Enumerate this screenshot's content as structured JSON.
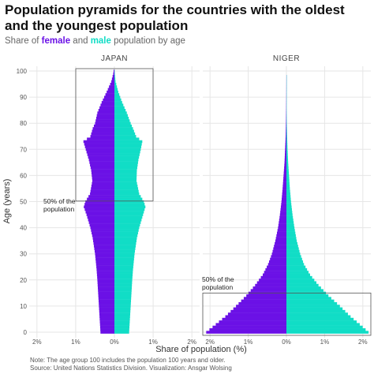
{
  "title": "Population pyramids for the countries with the oldest and the youngest population",
  "subtitle": {
    "prefix": "Share of ",
    "female": "female",
    "middle": " and ",
    "male": "male",
    "suffix": " population by age"
  },
  "notes": {
    "note": "Note: The age group 100 includes the population 100 years and older.",
    "source": "Source: United Nations Statistics Division. Visualization: Ansgar Wolsing"
  },
  "colors": {
    "female": "#6b11e6",
    "male": "#11ddc6",
    "grid": "#e6e6e6",
    "axis": "#888888"
  },
  "chart_data": [
    {
      "type": "bar",
      "orientation": "horizontal",
      "panel": "JAPAN",
      "ylabel": "Age (years)",
      "xlabel": "Share of population (%)",
      "ylim": [
        0,
        100
      ],
      "xlim": [
        -2.2,
        2.2
      ],
      "y_ticks": [
        0,
        10,
        20,
        30,
        40,
        50,
        60,
        70,
        80,
        90,
        100
      ],
      "x_ticks": [
        "2%",
        "1%",
        "0%",
        "1%",
        "2%"
      ],
      "annotation": {
        "label": "50% of the population",
        "lines": [
          "50% of the",
          "population"
        ],
        "box_age_range": [
          49,
          100
        ]
      },
      "series": [
        {
          "name": "female",
          "age_points": [
            [
              0,
              0.36
            ],
            [
              5,
              0.38
            ],
            [
              10,
              0.4
            ],
            [
              15,
              0.42
            ],
            [
              20,
              0.44
            ],
            [
              24,
              0.46
            ],
            [
              30,
              0.5
            ],
            [
              36,
              0.56
            ],
            [
              40,
              0.62
            ],
            [
              45,
              0.72
            ],
            [
              48,
              0.79
            ],
            [
              50,
              0.75
            ],
            [
              53,
              0.63
            ],
            [
              58,
              0.57
            ],
            [
              62,
              0.6
            ],
            [
              66,
              0.66
            ],
            [
              70,
              0.74
            ],
            [
              73,
              0.8
            ],
            [
              75,
              0.62
            ],
            [
              78,
              0.56
            ],
            [
              80,
              0.5
            ],
            [
              84,
              0.44
            ],
            [
              88,
              0.33
            ],
            [
              92,
              0.2
            ],
            [
              96,
              0.08
            ],
            [
              99,
              0.03
            ],
            [
              100,
              0.02
            ]
          ]
        },
        {
          "name": "male",
          "age_points": [
            [
              0,
              0.38
            ],
            [
              5,
              0.4
            ],
            [
              10,
              0.42
            ],
            [
              15,
              0.44
            ],
            [
              20,
              0.46
            ],
            [
              24,
              0.48
            ],
            [
              30,
              0.52
            ],
            [
              36,
              0.58
            ],
            [
              40,
              0.64
            ],
            [
              45,
              0.74
            ],
            [
              48,
              0.8
            ],
            [
              50,
              0.76
            ],
            [
              53,
              0.64
            ],
            [
              58,
              0.57
            ],
            [
              62,
              0.58
            ],
            [
              66,
              0.62
            ],
            [
              70,
              0.68
            ],
            [
              73,
              0.72
            ],
            [
              75,
              0.56
            ],
            [
              78,
              0.48
            ],
            [
              80,
              0.42
            ],
            [
              84,
              0.32
            ],
            [
              88,
              0.2
            ],
            [
              92,
              0.1
            ],
            [
              96,
              0.03
            ],
            [
              99,
              0.01
            ],
            [
              100,
              0.005
            ]
          ]
        }
      ]
    },
    {
      "type": "bar",
      "orientation": "horizontal",
      "panel": "NIGER",
      "xlabel": "Share of population (%)",
      "ylim": [
        0,
        100
      ],
      "xlim": [
        -2.2,
        2.2
      ],
      "x_ticks": [
        "2%",
        "1%",
        "0%",
        "1%",
        "2%"
      ],
      "annotation": {
        "label": "50% of the population",
        "lines": [
          "50% of the",
          "population"
        ],
        "box_age_range": [
          0,
          15
        ]
      },
      "series": [
        {
          "name": "female",
          "age_points": [
            [
              0,
              2.1
            ],
            [
              3,
              1.85
            ],
            [
              6,
              1.6
            ],
            [
              10,
              1.32
            ],
            [
              14,
              1.05
            ],
            [
              18,
              0.82
            ],
            [
              22,
              0.62
            ],
            [
              26,
              0.48
            ],
            [
              30,
              0.38
            ],
            [
              35,
              0.29
            ],
            [
              40,
              0.22
            ],
            [
              45,
              0.17
            ],
            [
              50,
              0.13
            ],
            [
              55,
              0.1
            ],
            [
              60,
              0.075
            ],
            [
              65,
              0.05
            ],
            [
              70,
              0.035
            ],
            [
              75,
              0.02
            ],
            [
              80,
              0.012
            ],
            [
              85,
              0.007
            ],
            [
              90,
              0.004
            ],
            [
              95,
              0.002
            ],
            [
              98,
              0.001
            ]
          ]
        },
        {
          "name": "male",
          "age_points": [
            [
              0,
              2.15
            ],
            [
              3,
              1.92
            ],
            [
              6,
              1.68
            ],
            [
              10,
              1.4
            ],
            [
              14,
              1.1
            ],
            [
              18,
              0.84
            ],
            [
              22,
              0.62
            ],
            [
              26,
              0.46
            ],
            [
              30,
              0.36
            ],
            [
              35,
              0.27
            ],
            [
              40,
              0.21
            ],
            [
              45,
              0.16
            ],
            [
              50,
              0.12
            ],
            [
              55,
              0.09
            ],
            [
              60,
              0.068
            ],
            [
              65,
              0.045
            ],
            [
              70,
              0.03
            ],
            [
              75,
              0.018
            ],
            [
              80,
              0.01
            ],
            [
              85,
              0.006
            ],
            [
              90,
              0.003
            ],
            [
              95,
              0.002
            ],
            [
              98,
              0.001
            ]
          ]
        }
      ]
    }
  ]
}
